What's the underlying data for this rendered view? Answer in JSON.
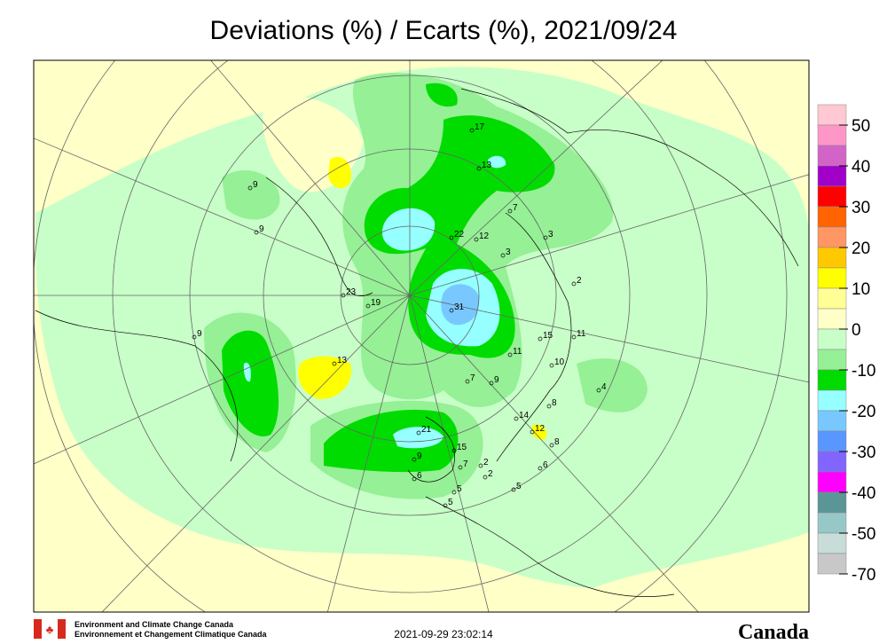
{
  "title": "Deviations (%) / Ecarts (%), 2021/09/24",
  "colorbar": {
    "colors": [
      "#ffc8d2",
      "#ff96c8",
      "#d264c8",
      "#a000c8",
      "#ff0000",
      "#ff6400",
      "#ff9664",
      "#ffc800",
      "#ffff00",
      "#ffff96",
      "#ffffc8",
      "#c8ffc8",
      "#96f096",
      "#00dc00",
      "#96ffff",
      "#78c8ff",
      "#5a96ff",
      "#8264ff",
      "#ff00ff",
      "#5a9696",
      "#96c8c8",
      "#c8dcd8",
      "#c8c8c8"
    ],
    "ticks": [
      50,
      40,
      30,
      20,
      10,
      0,
      -10,
      -20,
      -30,
      -40,
      -50,
      -70
    ]
  },
  "stations": [
    17,
    13,
    9,
    7,
    9,
    22,
    12,
    3,
    3,
    23,
    2,
    19,
    31,
    9,
    15,
    11,
    11,
    13,
    10,
    7,
    9,
    4,
    8,
    21,
    14,
    12,
    8,
    15,
    9,
    7,
    2,
    6,
    2,
    6,
    5,
    5,
    5
  ],
  "footer": {
    "org_en": "Environment and Climate Change Canada",
    "org_fr": "Environnement et Changement Climatique Canada",
    "timestamp": "2021-09-29 23:02:14",
    "wordmark": "Canada"
  }
}
